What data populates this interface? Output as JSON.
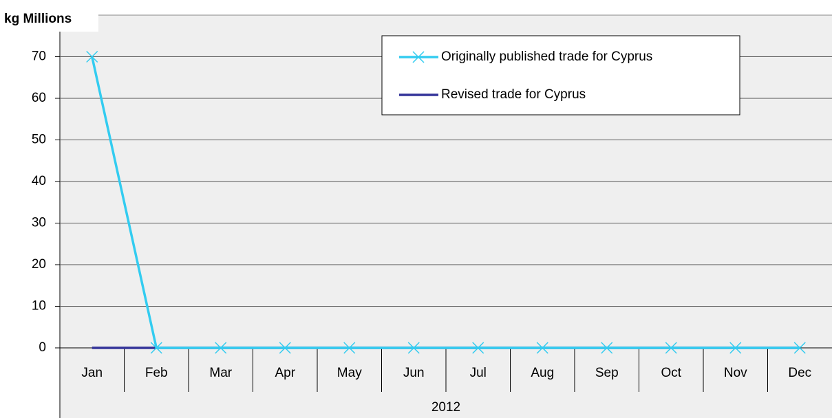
{
  "chart_data": {
    "type": "line",
    "y_label": "kg Millions",
    "categories": [
      "Jan",
      "Feb",
      "Mar",
      "Apr",
      "May",
      "Jun",
      "Jul",
      "Aug",
      "Sep",
      "Oct",
      "Nov",
      "Dec"
    ],
    "x_group_label": "2012",
    "series": [
      {
        "name": "Originally published trade for Cyprus",
        "color": "#33ccf0",
        "marker": "x",
        "values": [
          70,
          0,
          0,
          0,
          0,
          0,
          0,
          0,
          0,
          0,
          0,
          0
        ]
      },
      {
        "name": "Revised trade for Cyprus",
        "color": "#333399",
        "marker": "none",
        "values": [
          0,
          0,
          0,
          0,
          0,
          0,
          0,
          0,
          0,
          0,
          0,
          0
        ]
      }
    ],
    "ylim": [
      0,
      80
    ],
    "yticks": [
      0,
      10,
      20,
      30,
      40,
      50,
      60,
      70
    ],
    "grid": true
  }
}
